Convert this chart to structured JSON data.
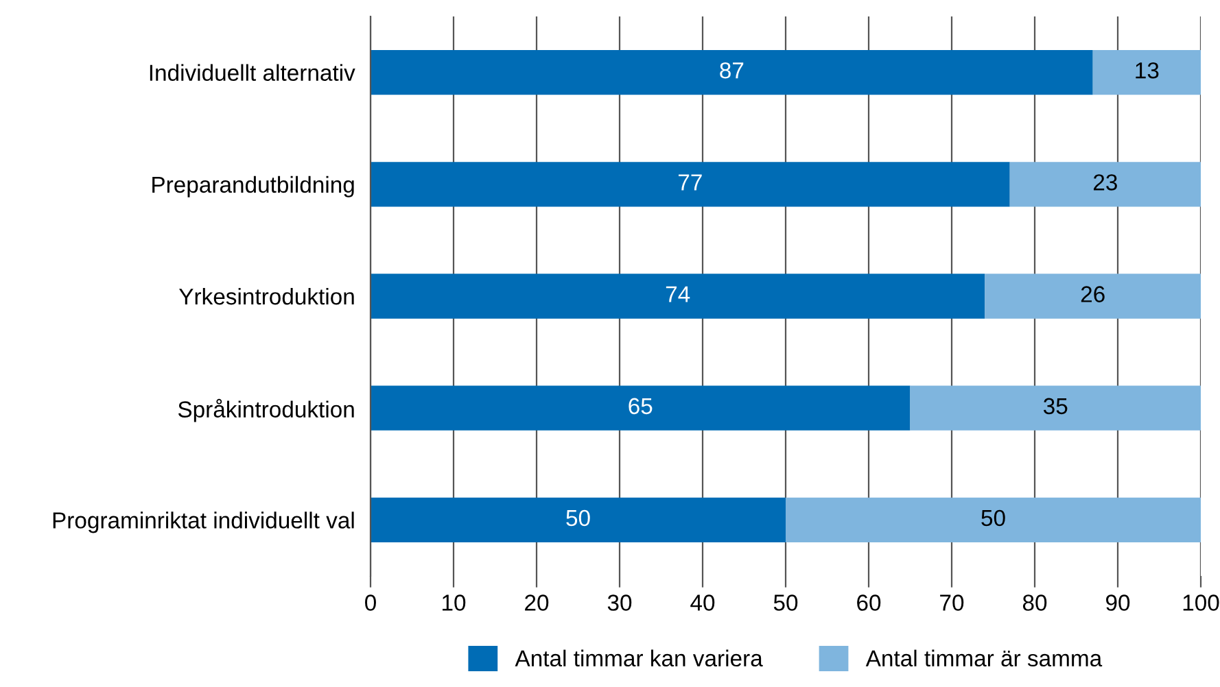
{
  "chart_data": {
    "type": "bar",
    "orientation": "horizontal",
    "stacked": true,
    "categories": [
      "Individuellt alternativ",
      "Preparandutbildning",
      "Yrkesintroduktion",
      "Språkintroduktion",
      "Programinriktat individuellt val"
    ],
    "series": [
      {
        "name": "Antal timmar kan variera",
        "color": "#006cb5",
        "values": [
          87,
          77,
          74,
          65,
          50
        ]
      },
      {
        "name": "Antal timmar är samma",
        "color": "#7fb5de",
        "values": [
          13,
          23,
          26,
          35,
          50
        ]
      }
    ],
    "xlim": [
      0,
      100
    ],
    "xticks": [
      0,
      10,
      20,
      30,
      40,
      50,
      60,
      70,
      80,
      90,
      100
    ],
    "grid": "x",
    "legend": "bottom",
    "data_labels": true
  }
}
